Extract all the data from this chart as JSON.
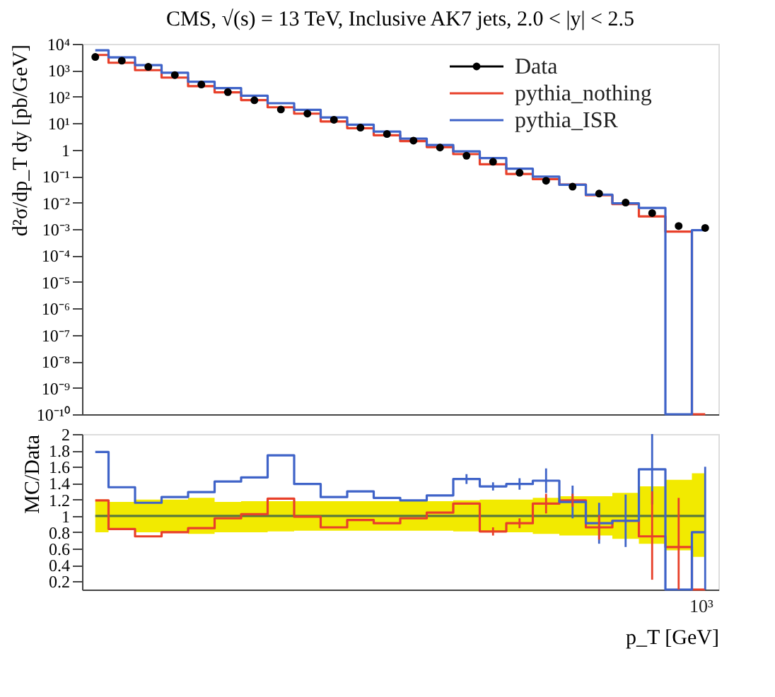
{
  "chart_data": [
    {
      "type": "step",
      "title": "CMS, √(s) = 13 TeV, Inclusive AK7 jets, 2.0 < |y| < 2.5",
      "ylabel": "d²σ/dp_T dy [pb/GeV]",
      "categories": [
        null,
        null,
        null,
        null,
        null,
        null,
        null,
        null,
        null,
        null,
        null,
        null,
        null,
        null,
        null,
        null,
        null,
        null,
        null,
        null,
        null,
        null,
        null,
        null
      ],
      "ylim": [
        1e-10,
        10000
      ],
      "yticks": [
        {
          "value": 10000,
          "label": "10⁴"
        },
        {
          "value": 1000,
          "label": "10³"
        },
        {
          "value": 100,
          "label": "10²"
        },
        {
          "value": 10,
          "label": "10¹"
        },
        1,
        {
          "value": 0.1,
          "label": "10⁻¹"
        },
        {
          "value": 0.01,
          "label": "10⁻²"
        },
        {
          "value": 0.001,
          "label": "10⁻³"
        },
        {
          "value": 0.0001,
          "label": "10⁻⁴"
        },
        {
          "value": 1e-05,
          "label": "10⁻⁵"
        },
        {
          "value": 1e-06,
          "label": "10⁻⁶"
        },
        {
          "value": 1e-07,
          "label": "10⁻⁷"
        },
        {
          "value": 1e-08,
          "label": "10⁻⁸"
        },
        {
          "value": 1e-09,
          "label": "10⁻⁹"
        },
        {
          "value": 1e-10,
          "label": "10⁻¹⁰"
        }
      ],
      "log": "y",
      "legend": "top right",
      "series": [
        {
          "name": "Data",
          "type": "scatter",
          "marker": "circle",
          "color": "#000000",
          "values": [
            3200,
            2300,
            1350,
            660,
            290,
            150,
            74,
            33,
            23,
            13.5,
            6.8,
            3.9,
            2.2,
            1.2,
            0.59,
            0.35,
            0.135,
            0.067,
            0.04,
            0.022,
            0.01,
            0.004,
            0.0013,
            0.0011
          ]
        },
        {
          "name": "pythia_nothing",
          "color": "#e8402a",
          "values": [
            3800,
            1930,
            1010,
            530,
            250,
            146,
            75,
            40,
            23,
            11.6,
            6.5,
            3.5,
            2.1,
            1.25,
            0.68,
            0.28,
            0.12,
            0.077,
            0.048,
            0.019,
            0.0088,
            0.003,
            0.0008,
            1e-10
          ]
        },
        {
          "name": "pythia_ISR",
          "color": "#3f63c8",
          "values": [
            5700,
            3100,
            1570,
            810,
            370,
            213,
            109,
            57,
            32,
            16.6,
            8.8,
            4.8,
            2.6,
            1.5,
            0.86,
            0.48,
            0.19,
            0.096,
            0.047,
            0.02,
            0.0094,
            0.0063,
            1e-10,
            0.0009
          ]
        }
      ]
    },
    {
      "type": "step",
      "ylabel": "MC/Data",
      "xlabel": "p_T [GeV]",
      "annotations": [
        "10³"
      ],
      "categories": [
        null,
        null,
        null,
        null,
        null,
        null,
        null,
        null,
        null,
        null,
        null,
        null,
        null,
        null,
        null,
        null,
        null,
        null,
        null,
        null,
        null,
        null,
        null,
        null
      ],
      "ylim": [
        0.1,
        2
      ],
      "yticks": [
        0.2,
        0.4,
        0.6,
        0.8,
        1,
        1.2,
        1.4,
        1.6,
        1.8,
        2
      ],
      "series": [
        {
          "color": "#5a7a3a",
          "values": [
            1,
            1,
            1,
            1,
            1,
            1,
            1,
            1,
            1,
            1,
            1,
            1,
            1,
            1,
            1,
            1,
            1,
            1,
            1,
            1,
            1,
            1,
            1,
            1
          ],
          "lower": [
            0.8,
            0.83,
            0.8,
            0.8,
            0.78,
            0.8,
            0.8,
            0.81,
            0.82,
            0.82,
            0.82,
            0.82,
            0.82,
            0.82,
            0.81,
            0.8,
            0.8,
            0.78,
            0.76,
            0.76,
            0.72,
            0.66,
            0.58,
            0.5
          ],
          "upper": [
            1.2,
            1.17,
            1.2,
            1.2,
            1.22,
            1.17,
            1.18,
            1.18,
            1.18,
            1.18,
            1.18,
            1.18,
            1.18,
            1.18,
            1.19,
            1.2,
            1.2,
            1.22,
            1.24,
            1.24,
            1.28,
            1.36,
            1.44,
            1.52
          ]
        },
        {
          "color": "#e8402a",
          "values": [
            1.19,
            0.84,
            0.75,
            0.8,
            0.85,
            0.97,
            1.02,
            1.21,
            0.99,
            0.86,
            0.95,
            0.91,
            0.97,
            1.04,
            1.15,
            0.81,
            0.91,
            1.15,
            1.19,
            0.86,
            0.94,
            0.75,
            0.62,
            0.1
          ],
          "errors": [
            null,
            null,
            null,
            null,
            null,
            null,
            null,
            null,
            null,
            null,
            null,
            null,
            null,
            null,
            null,
            0.05,
            0.06,
            0.12,
            0.08,
            0.15,
            null,
            [
              0.22,
              1.3
            ],
            [
              0.1,
              1.22
            ],
            null
          ]
        },
        {
          "color": "#3f63c8",
          "values": [
            1.78,
            1.35,
            1.16,
            1.23,
            1.29,
            1.42,
            1.47,
            1.74,
            1.39,
            1.23,
            1.3,
            1.22,
            1.19,
            1.25,
            1.45,
            1.36,
            1.39,
            1.43,
            1.17,
            0.91,
            0.94,
            1.57,
            0.1,
            0.8
          ],
          "errors": [
            null,
            null,
            null,
            null,
            null,
            null,
            null,
            null,
            null,
            null,
            null,
            null,
            null,
            null,
            0.06,
            0.05,
            0.07,
            0.15,
            0.2,
            0.25,
            0.32,
            0.43,
            null,
            [
              0.1,
              1.6
            ]
          ]
        }
      ]
    }
  ]
}
